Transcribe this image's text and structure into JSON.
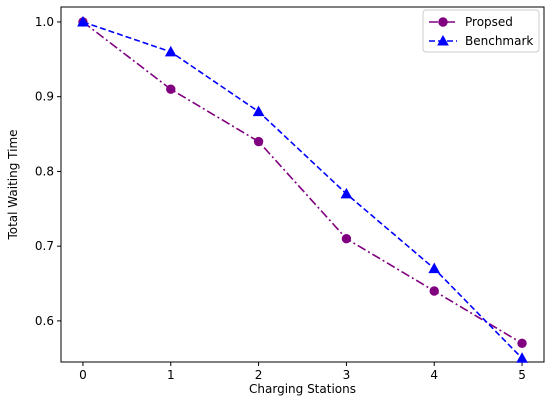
{
  "chart_data": {
    "type": "line",
    "title": "",
    "xlabel": "Charging Stations",
    "ylabel": "Total Waiting Time",
    "x": [
      0,
      1,
      2,
      3,
      4,
      5
    ],
    "xticks": [
      "0",
      "1",
      "2",
      "3",
      "4",
      "5"
    ],
    "yticks": [
      "0.6",
      "0.7",
      "0.8",
      "0.9",
      "1.0"
    ],
    "xlim": [
      -0.25,
      5.25
    ],
    "ylim": [
      0.545,
      1.02
    ],
    "grid": false,
    "legend_position": "top-right",
    "series": [
      {
        "name": "Propsed",
        "values": [
          1.0,
          0.91,
          0.84,
          0.71,
          0.64,
          0.57
        ],
        "color": "#800080",
        "marker": "circle",
        "linestyle": "dash-dot"
      },
      {
        "name": "Benchmark",
        "values": [
          1.0,
          0.96,
          0.88,
          0.77,
          0.67,
          0.55
        ],
        "color": "#0000ff",
        "marker": "triangle",
        "linestyle": "dashed"
      }
    ]
  }
}
